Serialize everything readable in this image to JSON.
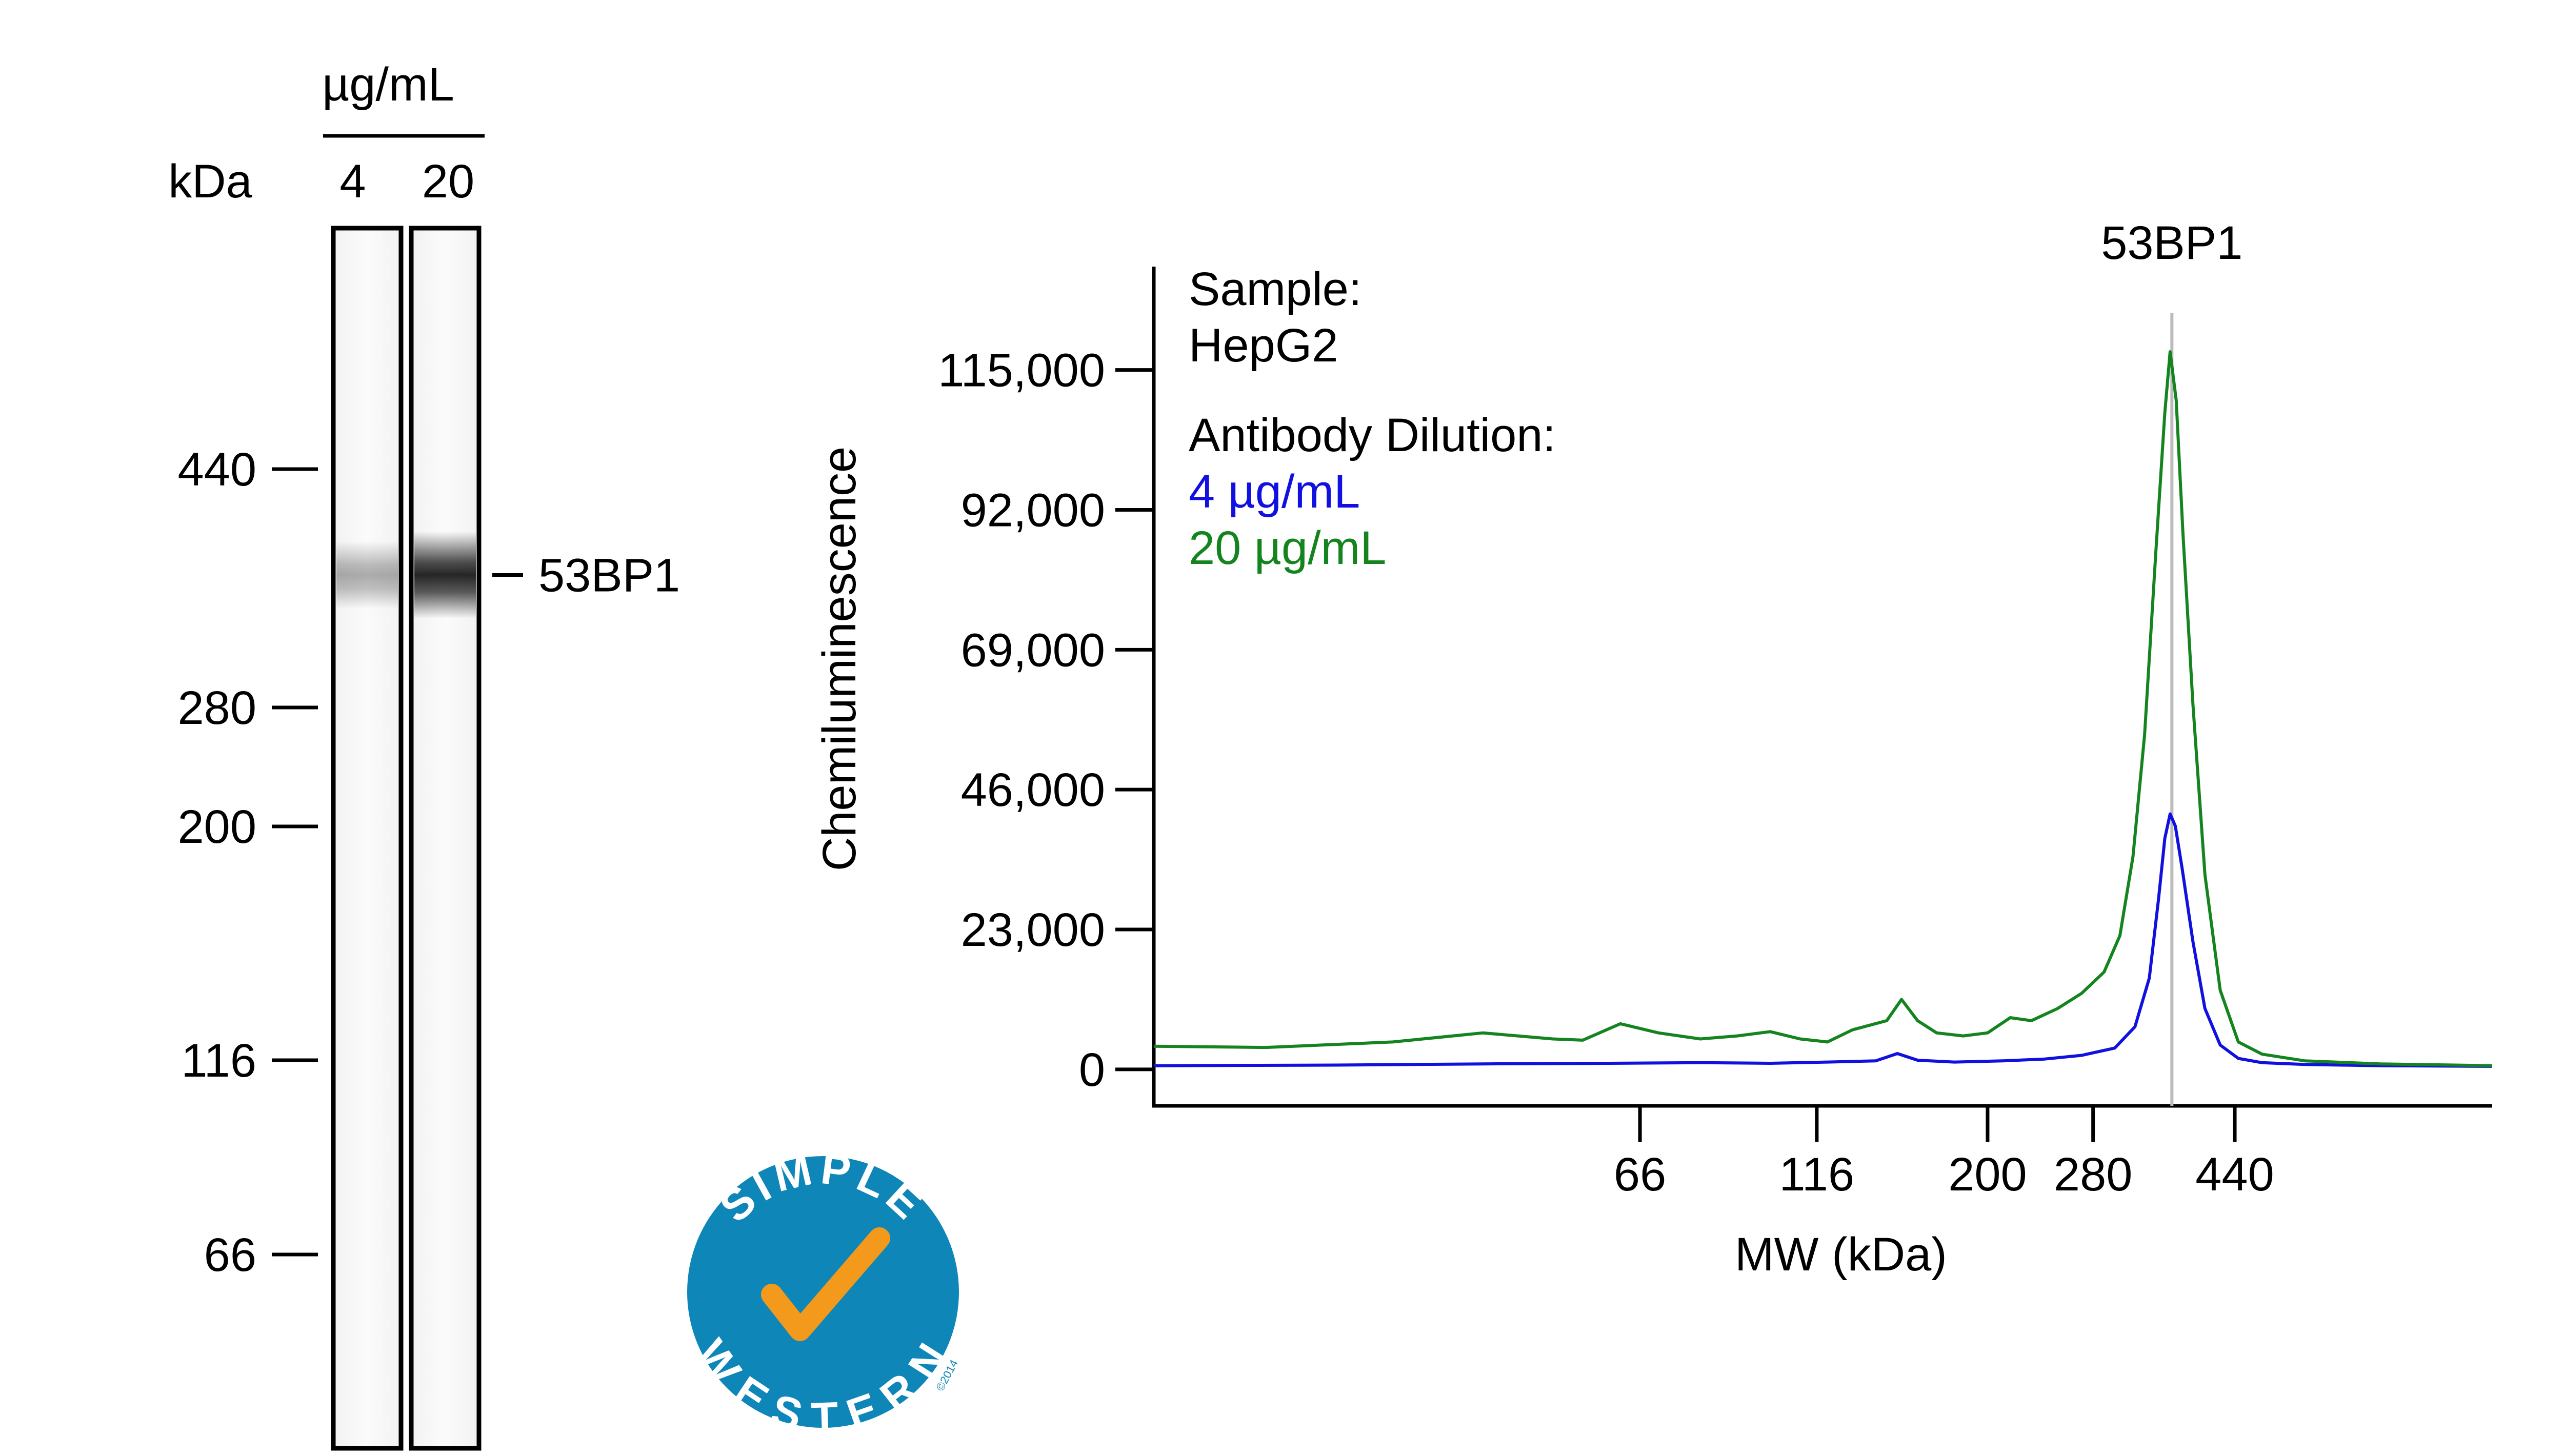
{
  "blot": {
    "unit_header": "µg/mL",
    "kda_label": "kDa",
    "lanes": [
      "4",
      "20"
    ],
    "markers": [
      {
        "label": "440",
        "kda": 440
      },
      {
        "label": "280",
        "kda": 280
      },
      {
        "label": "200",
        "kda": 200
      },
      {
        "label": "116",
        "kda": 116
      },
      {
        "label": "66",
        "kda": 66
      }
    ],
    "band_label": "53BP1",
    "band_kda": 360,
    "band_intensity": [
      0.32,
      0.85
    ]
  },
  "logo": {
    "top_text": "SIMPLE",
    "bottom_text": "WESTERN",
    "copyright": "©2014",
    "circle_color": "#0f86b8",
    "check_color": "#f39a1c"
  },
  "legend": {
    "sample_label": "Sample:",
    "sample_value": "HepG2",
    "dilution_label": "Antibody Dilution:"
  },
  "chart_data": {
    "type": "line",
    "peak_label": "53BP1",
    "peak_kda": 360,
    "xlabel": "MW (kDa)",
    "ylabel": "Chemiluminescence",
    "x_ticks": [
      {
        "label": "66",
        "kda": 66
      },
      {
        "label": "116",
        "kda": 116
      },
      {
        "label": "200",
        "kda": 200
      },
      {
        "label": "280",
        "kda": 280
      },
      {
        "label": "440",
        "kda": 440
      }
    ],
    "y_ticks": [
      {
        "label": "0",
        "value": 0
      },
      {
        "label": "23,000",
        "value": 23000
      },
      {
        "label": "46,000",
        "value": 46000
      },
      {
        "label": "69,000",
        "value": 69000
      },
      {
        "label": "92,000",
        "value": 92000
      },
      {
        "label": "115,000",
        "value": 115000
      }
    ],
    "xlim": [
      14,
      1000
    ],
    "ylim": [
      -6000,
      132000
    ],
    "series": [
      {
        "name": "4 µg/mL",
        "color": "#1010e0",
        "points": [
          [
            14,
            600
          ],
          [
            25,
            700
          ],
          [
            40,
            900
          ],
          [
            60,
            1000
          ],
          [
            80,
            1100
          ],
          [
            100,
            1000
          ],
          [
            120,
            1200
          ],
          [
            140,
            1400
          ],
          [
            150,
            2600
          ],
          [
            160,
            1500
          ],
          [
            180,
            1200
          ],
          [
            210,
            1400
          ],
          [
            240,
            1700
          ],
          [
            270,
            2300
          ],
          [
            300,
            3500
          ],
          [
            320,
            7000
          ],
          [
            335,
            15000
          ],
          [
            345,
            28000
          ],
          [
            352,
            38000
          ],
          [
            358,
            42000
          ],
          [
            364,
            40000
          ],
          [
            372,
            33000
          ],
          [
            385,
            21000
          ],
          [
            400,
            10000
          ],
          [
            420,
            4000
          ],
          [
            445,
            1800
          ],
          [
            480,
            1100
          ],
          [
            550,
            800
          ],
          [
            700,
            600
          ],
          [
            1000,
            500
          ]
        ]
      },
      {
        "name": "20 µg/mL",
        "color": "#14851e",
        "points": [
          [
            14,
            3800
          ],
          [
            20,
            3600
          ],
          [
            30,
            4500
          ],
          [
            40,
            6000
          ],
          [
            50,
            5000
          ],
          [
            55,
            4800
          ],
          [
            62,
            7500
          ],
          [
            70,
            6000
          ],
          [
            80,
            5000
          ],
          [
            90,
            5500
          ],
          [
            100,
            6200
          ],
          [
            110,
            5000
          ],
          [
            120,
            4500
          ],
          [
            130,
            6500
          ],
          [
            145,
            8000
          ],
          [
            152,
            11500
          ],
          [
            160,
            8000
          ],
          [
            170,
            6000
          ],
          [
            185,
            5500
          ],
          [
            200,
            6000
          ],
          [
            215,
            8500
          ],
          [
            230,
            8000
          ],
          [
            250,
            10000
          ],
          [
            270,
            12500
          ],
          [
            290,
            16000
          ],
          [
            305,
            22000
          ],
          [
            318,
            35000
          ],
          [
            330,
            55000
          ],
          [
            342,
            85000
          ],
          [
            352,
            108000
          ],
          [
            358,
            118000
          ],
          [
            365,
            110000
          ],
          [
            373,
            88000
          ],
          [
            385,
            60000
          ],
          [
            400,
            32000
          ],
          [
            420,
            13000
          ],
          [
            445,
            4500
          ],
          [
            480,
            2500
          ],
          [
            550,
            1400
          ],
          [
            700,
            900
          ],
          [
            1000,
            600
          ]
        ]
      }
    ]
  }
}
